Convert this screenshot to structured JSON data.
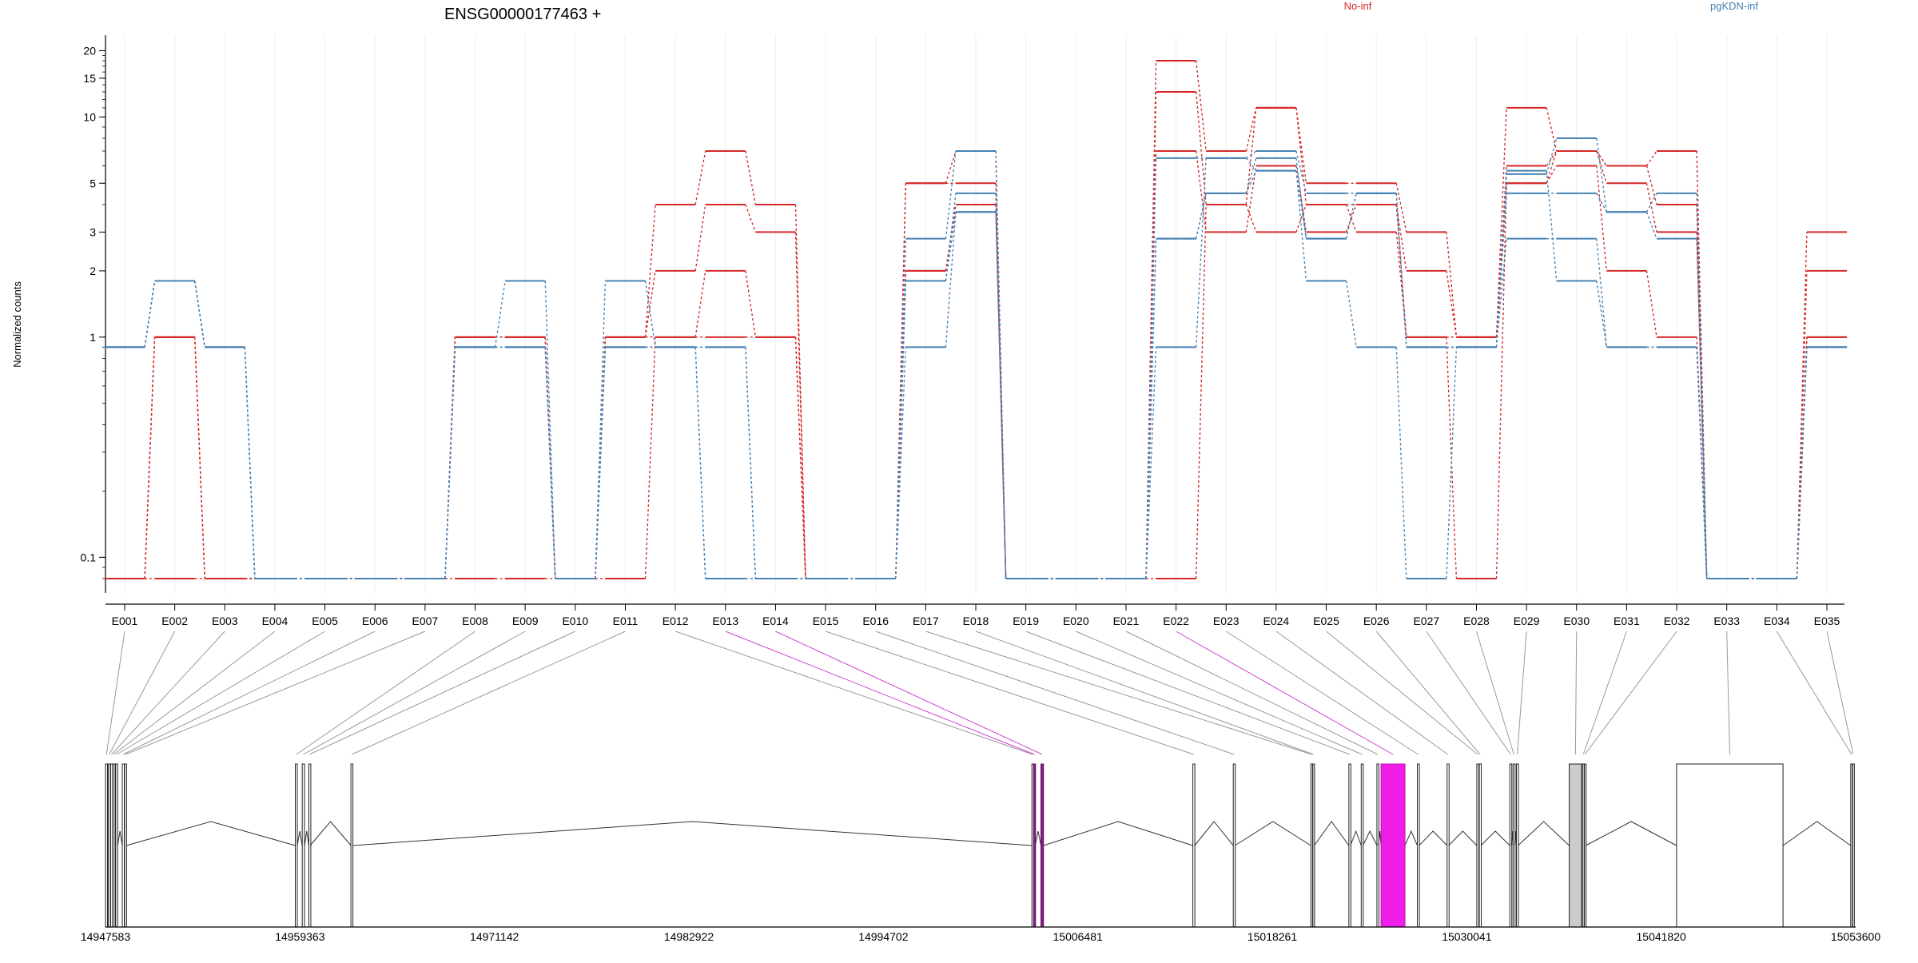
{
  "chart_data": {
    "type": "line",
    "title": "ENSG00000177463 +",
    "ylabel": "Normalized counts",
    "xlabel": "",
    "y_scale": "log",
    "ylim": [
      0.07,
      22
    ],
    "y_ticks": [
      "20",
      "15",
      "10",
      "5",
      "3",
      "2",
      "1",
      "0.1"
    ],
    "y_tick_values": [
      20,
      15,
      10,
      5,
      3,
      2,
      1,
      0.1
    ],
    "categories": [
      "E001",
      "E002",
      "E003",
      "E004",
      "E005",
      "E006",
      "E007",
      "E008",
      "E009",
      "E010",
      "E011",
      "E012",
      "E013",
      "E014",
      "E015",
      "E016",
      "E017",
      "E018",
      "E019",
      "E020",
      "E021",
      "E022",
      "E023",
      "E024",
      "E025",
      "E026",
      "E027",
      "E028",
      "E029",
      "E030",
      "E031",
      "E032",
      "E033",
      "E034",
      "E035"
    ],
    "legend": [
      {
        "name": "No-inf",
        "color": "#d62728"
      },
      {
        "name": "pgKDN-inf",
        "color": "#4682b4"
      }
    ],
    "legend_position": "top",
    "grid": "vertical",
    "series": [
      {
        "name": "No-inf",
        "color": "#d62728",
        "values": [
          0.08,
          1,
          0.08,
          0.08,
          0.08,
          0.08,
          0.08,
          1,
          1,
          0.08,
          1,
          4,
          7,
          4,
          0.08,
          0.08,
          5,
          5,
          0.08,
          0.08,
          0.08,
          18,
          7,
          11,
          5,
          5,
          3,
          1,
          11,
          7,
          6,
          7,
          0.08,
          0.08,
          3
        ]
      },
      {
        "name": "No-inf",
        "color": "#d62728",
        "values": [
          0.08,
          1,
          0.08,
          0.08,
          0.08,
          0.08,
          0.08,
          1,
          1,
          0.08,
          1,
          2,
          4,
          3,
          0.08,
          0.08,
          5,
          7,
          0.08,
          0.08,
          0.08,
          13,
          4,
          11,
          4,
          4,
          2,
          1,
          6,
          7,
          6,
          4,
          0.08,
          0.08,
          2
        ]
      },
      {
        "name": "No-inf",
        "color": "#d62728",
        "values": [
          0.08,
          1,
          0.08,
          0.08,
          0.08,
          0.08,
          0.08,
          1,
          1,
          0.08,
          1,
          1,
          2,
          1,
          0.08,
          0.08,
          2,
          4,
          0.08,
          0.08,
          0.08,
          7,
          3,
          6,
          3,
          4,
          1,
          1,
          5,
          7,
          5,
          3,
          0.08,
          0.08,
          1
        ]
      },
      {
        "name": "No-inf",
        "color": "#d62728",
        "values": [
          0.08,
          0.08,
          0.08,
          0.08,
          0.08,
          0.08,
          0.08,
          0.08,
          0.08,
          0.08,
          0.08,
          1,
          1,
          1,
          0.08,
          0.08,
          2,
          4,
          0.08,
          0.08,
          0.08,
          0.08,
          4,
          3,
          4,
          3,
          1,
          0.08,
          5,
          6,
          2,
          1,
          0.08,
          0.08,
          1
        ]
      },
      {
        "name": "pgKDN-inf",
        "color": "#4682b4",
        "values": [
          0.9,
          1.8,
          0.9,
          0.08,
          0.08,
          0.08,
          0.08,
          0.9,
          1.8,
          0.08,
          1.8,
          0.9,
          0.9,
          0.08,
          0.08,
          0.08,
          2.8,
          7,
          0.08,
          0.08,
          0.08,
          6.5,
          6.5,
          7,
          4.5,
          4.5,
          0.9,
          0.9,
          5.5,
          8,
          3.7,
          4.5,
          0.08,
          0.08,
          0.9
        ]
      },
      {
        "name": "pgKDN-inf",
        "color": "#4682b4",
        "values": [
          0.9,
          1.8,
          0.9,
          0.08,
          0.08,
          0.08,
          0.08,
          0.9,
          0.9,
          0.08,
          0.9,
          0.9,
          0.9,
          0.08,
          0.08,
          0.08,
          1.8,
          4.5,
          0.08,
          0.08,
          0.08,
          2.8,
          4.5,
          6.5,
          2.8,
          4.5,
          0.9,
          0.9,
          4.5,
          4.5,
          3.7,
          2.8,
          0.08,
          0.08,
          0.9
        ]
      },
      {
        "name": "pgKDN-inf",
        "color": "#4682b4",
        "values": [
          0.9,
          1.8,
          0.9,
          0.08,
          0.08,
          0.08,
          0.08,
          0.9,
          0.9,
          0.08,
          0.9,
          0.9,
          0.08,
          0.08,
          0.08,
          0.08,
          1.8,
          3.7,
          0.08,
          0.08,
          0.08,
          2.8,
          4.5,
          5.7,
          2.8,
          4.5,
          0.9,
          0.9,
          2.8,
          2.8,
          0.9,
          0.9,
          0.08,
          0.08,
          0.9
        ]
      },
      {
        "name": "pgKDN-inf",
        "color": "#4682b4",
        "values": [
          0.9,
          1.8,
          0.9,
          0.08,
          0.08,
          0.08,
          0.08,
          0.9,
          0.9,
          0.08,
          0.9,
          0.9,
          0.08,
          0.08,
          0.08,
          0.08,
          0.9,
          3.7,
          0.08,
          0.08,
          0.08,
          0.9,
          6.5,
          5.7,
          1.8,
          0.9,
          0.08,
          0.9,
          5.7,
          1.8,
          0.9,
          0.9,
          0.08,
          0.08,
          0.9
        ]
      }
    ],
    "gene_model": {
      "coordinate_ticks": [
        "14947583",
        "14959363",
        "14971142",
        "14982922",
        "14994702",
        "15006481",
        "15018261",
        "15030041",
        "15041820",
        "15053600"
      ],
      "coordinate_values": [
        14947583,
        14959363,
        14971142,
        14982922,
        14994702,
        15006481,
        15018261,
        15030041,
        15041820,
        15053600
      ],
      "exons": [
        {
          "id": "E001",
          "start": 14947583,
          "end": 14947700
        },
        {
          "id": "E002",
          "start": 14947760,
          "end": 14947860
        },
        {
          "id": "E003",
          "start": 14947900,
          "end": 14948000
        },
        {
          "id": "E004",
          "start": 14948040,
          "end": 14948130
        },
        {
          "id": "E005",
          "start": 14948200,
          "end": 14948320
        },
        {
          "id": "E006",
          "start": 14948600,
          "end": 14948700
        },
        {
          "id": "E007",
          "start": 14948740,
          "end": 14948850
        },
        {
          "id": "E008",
          "start": 14959080,
          "end": 14959200
        },
        {
          "id": "E009",
          "start": 14959500,
          "end": 14959640
        },
        {
          "id": "E010",
          "start": 14959900,
          "end": 14959980
        },
        {
          "id": "E011",
          "start": 14962450,
          "end": 14962560
        },
        {
          "id": "E012",
          "start": 15003700,
          "end": 15003800
        },
        {
          "id": "E013",
          "start": 15003800,
          "end": 15003900,
          "highlight": true
        },
        {
          "id": "E014",
          "start": 15004250,
          "end": 15004400,
          "highlight": true
        },
        {
          "id": "E015",
          "start": 15013450,
          "end": 15013560
        },
        {
          "id": "E016",
          "start": 15015900,
          "end": 15016000
        },
        {
          "id": "E017",
          "start": 15020600,
          "end": 15020700
        },
        {
          "id": "E018",
          "start": 15020700,
          "end": 15020800
        },
        {
          "id": "E019",
          "start": 15022900,
          "end": 15023000
        },
        {
          "id": "E020",
          "start": 15023650,
          "end": 15023750
        },
        {
          "id": "E021",
          "start": 15024600,
          "end": 15024700
        },
        {
          "id": "E022",
          "start": 15024850,
          "end": 15026300,
          "highlight": true
        },
        {
          "id": "E023",
          "start": 15027050,
          "end": 15027150
        },
        {
          "id": "E024",
          "start": 15028850,
          "end": 15028950
        },
        {
          "id": "E025",
          "start": 15030650,
          "end": 15030750
        },
        {
          "id": "E026",
          "start": 15030800,
          "end": 15030900
        },
        {
          "id": "E027",
          "start": 15032650,
          "end": 15032750
        },
        {
          "id": "E028",
          "start": 15032850,
          "end": 15032950
        },
        {
          "id": "E029",
          "start": 15033050,
          "end": 15033150
        },
        {
          "id": "E030",
          "start": 15036250,
          "end": 15037000
        },
        {
          "id": "E031",
          "start": 15037050,
          "end": 15037150
        },
        {
          "id": "E032",
          "start": 15037150,
          "end": 15037250
        },
        {
          "id": "E033",
          "start": 15042750,
          "end": 15049200
        },
        {
          "id": "E034",
          "start": 15053300,
          "end": 15053400
        },
        {
          "id": "E035",
          "start": 15053400,
          "end": 15053500
        }
      ]
    }
  }
}
